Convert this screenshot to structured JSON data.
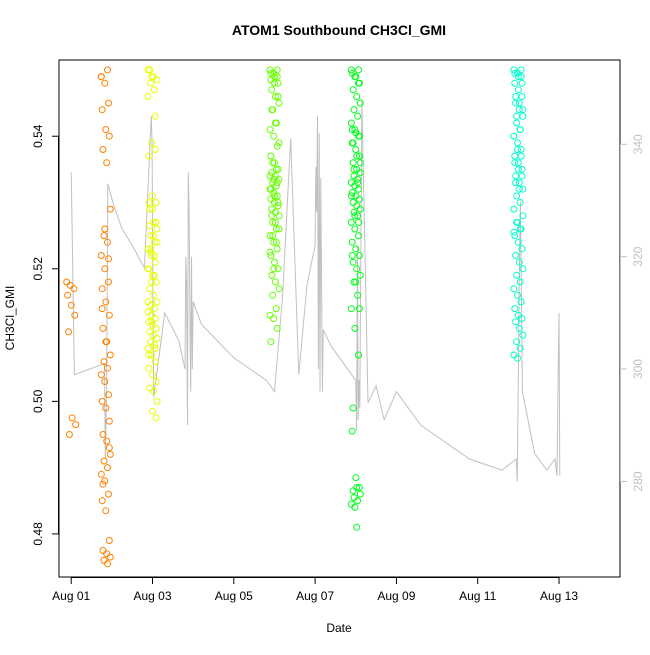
{
  "chart_data": {
    "type": "scatter",
    "title": "ATOM1 Southbound CH3Cl_GMI",
    "xlabel": "Date",
    "ylabel": "CH3Cl_GMI",
    "x_unit": "days since Aug 01",
    "xlim": [
      -0.3,
      13.5
    ],
    "ylim": [
      0.4735,
      0.5515
    ],
    "x_ticks": [
      {
        "value": 0,
        "label": "Aug 01"
      },
      {
        "value": 2,
        "label": "Aug 03"
      },
      {
        "value": 4,
        "label": "Aug 05"
      },
      {
        "value": 6,
        "label": "Aug 07"
      },
      {
        "value": 8,
        "label": "Aug 09"
      },
      {
        "value": 10,
        "label": "Aug 11"
      },
      {
        "value": 12,
        "label": "Aug 13"
      }
    ],
    "y_ticks": [
      {
        "value": 0.48,
        "label": "0.48"
      },
      {
        "value": 0.5,
        "label": "0.50"
      },
      {
        "value": 0.52,
        "label": "0.52"
      },
      {
        "value": 0.54,
        "label": "0.54"
      }
    ],
    "secondary_y": {
      "lim": [
        263,
        355
      ],
      "ticks": [
        {
          "value": 280,
          "label": "280"
        },
        {
          "value": 300,
          "label": "300"
        },
        {
          "value": 320,
          "label": "320"
        },
        {
          "value": 340,
          "label": "340"
        }
      ],
      "color": "#c0c0c0"
    },
    "series": [
      {
        "name": "scatter-cluster",
        "color": "#ff8000",
        "x": [
          0.0,
          0.0,
          0.0,
          0.0,
          0.0,
          0.0,
          0.0,
          0.0,
          0.0,
          0.0,
          0.85,
          0.85,
          0.85,
          0.85,
          0.85,
          0.85,
          0.85,
          0.85,
          0.85,
          0.85,
          0.85,
          0.85,
          0.85,
          0.85,
          0.85,
          0.85,
          0.85,
          0.85,
          0.85,
          0.85,
          0.85,
          0.85,
          0.85,
          0.85,
          0.85,
          0.85,
          0.85,
          0.85,
          0.85,
          0.85,
          0.85,
          0.85,
          0.85,
          0.85,
          0.85,
          0.85,
          0.85,
          0.85,
          0.85,
          0.85,
          0.85,
          0.85,
          0.85,
          0.85,
          0.85,
          0.85,
          0.85,
          0.85,
          0.85,
          0.85,
          0.85,
          0.85
        ],
        "y": [
          0.518,
          0.5175,
          0.517,
          0.516,
          0.5145,
          0.513,
          0.5105,
          0.4975,
          0.4965,
          0.495,
          0.55,
          0.549,
          0.548,
          0.545,
          0.544,
          0.541,
          0.54,
          0.538,
          0.536,
          0.529,
          0.525,
          0.524,
          0.522,
          0.52,
          0.518,
          0.517,
          0.515,
          0.513,
          0.511,
          0.509,
          0.507,
          0.506,
          0.505,
          0.504,
          0.503,
          0.501,
          0.5,
          0.499,
          0.497,
          0.495,
          0.494,
          0.492,
          0.491,
          0.49,
          0.489,
          0.488,
          0.486,
          0.485,
          0.4835,
          0.479,
          0.4775,
          0.477,
          0.4765,
          0.476,
          0.4755,
          0.549,
          0.526,
          0.5215,
          0.514,
          0.509,
          0.493,
          0.4875
        ]
      },
      {
        "name": "scatter-cluster",
        "color": "#e6ff00",
        "x": [
          2.0,
          2.0,
          2.0,
          2.0,
          2.0,
          2.0,
          2.0,
          2.0,
          2.0,
          2.0,
          2.0,
          2.0,
          2.0,
          2.0,
          2.0,
          2.0,
          2.0,
          2.0,
          2.0,
          2.0,
          2.0,
          2.0,
          2.0,
          2.0,
          2.0,
          2.0,
          2.0,
          2.0,
          2.0,
          2.0,
          2.0,
          2.0,
          2.0,
          2.0,
          2.0,
          2.0,
          2.0,
          2.0,
          2.0,
          2.0,
          2.0,
          2.0,
          2.0,
          2.0,
          2.0,
          2.0,
          2.0,
          2.0,
          2.0,
          2.0,
          2.0,
          2.0,
          2.0,
          2.0,
          2.0,
          2.0,
          2.0,
          2.0,
          2.0,
          2.0,
          2.0,
          2.0,
          2.0,
          2.0,
          2.0,
          2.0,
          2.0,
          2.0,
          2.0
        ],
        "y": [
          0.55,
          0.549,
          0.543,
          0.53,
          0.529,
          0.527,
          0.5265,
          0.525,
          0.524,
          0.523,
          0.522,
          0.52,
          0.518,
          0.508,
          0.507,
          0.4985,
          0.4975,
          0.55,
          0.549,
          0.5485,
          0.548,
          0.547,
          0.546,
          0.539,
          0.538,
          0.537,
          0.531,
          0.53,
          0.529,
          0.527,
          0.526,
          0.525,
          0.524,
          0.523,
          0.522,
          0.521,
          0.52,
          0.519,
          0.518,
          0.517,
          0.516,
          0.515,
          0.5145,
          0.514,
          0.5135,
          0.513,
          0.5125,
          0.512,
          0.5115,
          0.511,
          0.5105,
          0.51,
          0.5095,
          0.509,
          0.5085,
          0.508,
          0.507,
          0.506,
          0.505,
          0.504,
          0.503,
          0.502,
          0.5015,
          0.5,
          0.5225,
          0.519,
          0.515,
          0.512,
          0.508
        ]
      },
      {
        "name": "scatter-cluster",
        "color": "#66ff00",
        "x": [
          5.0,
          5.0,
          5.0,
          5.0,
          5.0,
          5.0,
          5.0,
          5.0,
          5.0,
          5.0,
          5.0,
          5.0,
          5.0,
          5.0,
          5.0,
          5.0,
          5.0,
          5.0,
          5.0,
          5.0,
          5.0,
          5.0,
          5.0,
          5.0,
          5.0,
          5.0,
          5.0,
          5.0,
          5.0,
          5.0,
          5.0,
          5.0,
          5.0,
          5.0,
          5.0,
          5.0,
          5.0,
          5.0,
          5.0,
          5.0,
          5.0,
          5.0,
          5.0,
          5.0,
          5.0,
          5.0,
          5.0,
          5.0,
          5.0,
          5.0,
          5.0,
          5.0,
          5.0,
          5.0,
          5.0,
          5.0,
          5.0,
          5.0,
          5.0,
          5.0,
          5.0,
          5.0,
          5.0,
          5.0,
          5.0,
          5.0,
          5.0,
          5.0,
          5.0,
          5.0
        ],
        "y": [
          0.55,
          0.5495,
          0.549,
          0.5485,
          0.548,
          0.546,
          0.544,
          0.542,
          0.539,
          0.536,
          0.535,
          0.534,
          0.5335,
          0.533,
          0.532,
          0.531,
          0.53,
          0.528,
          0.527,
          0.526,
          0.525,
          0.524,
          0.5225,
          0.52,
          0.55,
          0.5495,
          0.549,
          0.548,
          0.547,
          0.546,
          0.545,
          0.544,
          0.542,
          0.541,
          0.54,
          0.5385,
          0.537,
          0.536,
          0.535,
          0.5345,
          0.534,
          0.5335,
          0.533,
          0.5325,
          0.532,
          0.5315,
          0.531,
          0.5305,
          0.53,
          0.5295,
          0.529,
          0.5285,
          0.528,
          0.527,
          0.526,
          0.525,
          0.524,
          0.523,
          0.522,
          0.521,
          0.52,
          0.519,
          0.518,
          0.517,
          0.516,
          0.514,
          0.513,
          0.5125,
          0.511,
          0.509
        ]
      },
      {
        "name": "scatter-cluster",
        "color": "#00ff1a",
        "x": [
          7.0,
          7.0,
          7.0,
          7.0,
          7.0,
          7.0,
          7.0,
          7.0,
          7.0,
          7.0,
          7.0,
          7.0,
          7.0,
          7.0,
          7.0,
          7.0,
          7.0,
          7.0,
          7.0,
          7.0,
          7.0,
          7.0,
          7.0,
          7.0,
          7.0,
          7.0,
          7.0,
          7.0,
          7.0,
          7.0,
          7.0,
          7.0,
          7.0,
          7.0,
          7.0,
          7.0,
          7.0,
          7.0,
          7.0,
          7.0,
          7.0,
          7.0,
          7.0,
          7.0,
          7.0,
          7.0,
          7.0,
          7.0,
          7.0,
          7.0,
          7.0,
          7.0,
          7.0,
          7.0,
          7.0,
          7.0,
          7.0,
          7.0,
          7.0,
          7.0,
          7.0,
          7.0,
          7.0,
          7.0,
          7.0,
          7.0,
          7.0,
          7.0,
          7.0,
          7.0,
          7.0,
          7.0,
          7.0,
          7.0
        ],
        "y": [
          0.55,
          0.549,
          0.548,
          0.541,
          0.5405,
          0.54,
          0.539,
          0.537,
          0.536,
          0.535,
          0.533,
          0.531,
          0.528,
          0.527,
          0.522,
          0.518,
          0.514,
          0.499,
          0.487,
          0.486,
          0.4855,
          0.485,
          0.4845,
          0.484,
          0.55,
          0.5495,
          0.549,
          0.548,
          0.547,
          0.546,
          0.545,
          0.544,
          0.543,
          0.542,
          0.541,
          0.54,
          0.539,
          0.538,
          0.537,
          0.536,
          0.535,
          0.5345,
          0.534,
          0.5335,
          0.533,
          0.5325,
          0.532,
          0.5315,
          0.531,
          0.5305,
          0.53,
          0.5295,
          0.529,
          0.5285,
          0.528,
          0.527,
          0.526,
          0.525,
          0.524,
          0.523,
          0.522,
          0.521,
          0.52,
          0.519,
          0.518,
          0.516,
          0.514,
          0.511,
          0.507,
          0.4955,
          0.4885,
          0.487,
          0.4865,
          0.481
        ]
      },
      {
        "name": "scatter-cluster",
        "color": "#00ffcc",
        "x": [
          11.0,
          11.0,
          11.0,
          11.0,
          11.0,
          11.0,
          11.0,
          11.0,
          11.0,
          11.0,
          11.0,
          11.0,
          11.0,
          11.0,
          11.0,
          11.0,
          11.0,
          11.0,
          11.0,
          11.0,
          11.0,
          11.0,
          11.0,
          11.0,
          11.0,
          11.0,
          11.0,
          11.0,
          11.0,
          11.0,
          11.0,
          11.0,
          11.0,
          11.0,
          11.0,
          11.0,
          11.0,
          11.0,
          11.0,
          11.0,
          11.0,
          11.0,
          11.0,
          11.0,
          11.0,
          11.0,
          11.0,
          11.0,
          11.0,
          11.0,
          11.0,
          11.0,
          11.0,
          11.0,
          11.0,
          11.0,
          11.0,
          11.0,
          11.0,
          11.0,
          11.0,
          11.0,
          11.0,
          11.0,
          11.0,
          11.0,
          11.0
        ],
        "y": [
          0.55,
          0.5495,
          0.549,
          0.548,
          0.547,
          0.546,
          0.545,
          0.544,
          0.543,
          0.542,
          0.541,
          0.54,
          0.539,
          0.538,
          0.537,
          0.536,
          0.535,
          0.534,
          0.533,
          0.532,
          0.531,
          0.53,
          0.529,
          0.527,
          0.526,
          0.525,
          0.524,
          0.523,
          0.522,
          0.521,
          0.52,
          0.519,
          0.518,
          0.517,
          0.516,
          0.515,
          0.514,
          0.513,
          0.5125,
          0.512,
          0.511,
          0.51,
          0.509,
          0.508,
          0.507,
          0.5065,
          0.55,
          0.5495,
          0.549,
          0.548,
          0.546,
          0.545,
          0.544,
          0.543,
          0.541,
          0.54,
          0.538,
          0.537,
          0.536,
          0.535,
          0.534,
          0.533,
          0.532,
          0.528,
          0.527,
          0.526,
          0.5255
        ]
      }
    ],
    "line_series": {
      "name": "secondary-axis trace",
      "color": "#c0c0c0",
      "axis": "secondary",
      "x": [
        0.0,
        0.08,
        0.82,
        0.84,
        0.87,
        0.9,
        1.05,
        1.25,
        1.5,
        1.8,
        1.97,
        1.99,
        2.01,
        2.03,
        2.3,
        2.65,
        2.8,
        2.82,
        2.84,
        2.86,
        2.88,
        2.9,
        2.92,
        2.94,
        2.96,
        2.98,
        3.0,
        3.2,
        3.6,
        4.0,
        4.4,
        4.8,
        5.0,
        5.2,
        5.4,
        5.6,
        5.8,
        6.0,
        6.02,
        6.04,
        6.06,
        6.08,
        6.1,
        6.12,
        6.14,
        6.16,
        6.18,
        6.2,
        6.4,
        6.8,
        7.0,
        7.02,
        7.04,
        7.06,
        7.08,
        7.1,
        7.15,
        7.3,
        7.5,
        7.7,
        8.0,
        8.3,
        8.6,
        9.0,
        9.4,
        9.8,
        10.2,
        10.6,
        10.95,
        10.97,
        11.0,
        11.02,
        11.05,
        11.08,
        11.1,
        11.4,
        11.7,
        11.9,
        11.95,
        11.98,
        12.0,
        12.02
      ],
      "y": [
        335,
        299,
        301,
        284,
        296,
        333,
        329,
        325,
        322,
        318,
        345,
        340,
        312,
        295,
        310,
        305,
        300,
        320,
        315,
        290,
        335,
        328,
        310,
        296,
        320,
        300,
        312,
        308,
        305,
        302,
        300,
        298,
        296,
        313,
        341,
        299,
        315,
        322,
        336,
        328,
        345,
        300,
        342,
        296,
        334,
        315,
        296,
        307,
        304,
        300,
        298,
        289,
        322,
        291,
        298,
        293,
        348,
        294,
        297,
        291,
        296,
        293,
        290,
        288,
        286,
        284,
        283,
        282,
        284,
        280,
        300,
        315,
        330,
        310,
        296,
        285,
        282,
        284,
        281,
        300,
        310,
        281
      ]
    }
  }
}
